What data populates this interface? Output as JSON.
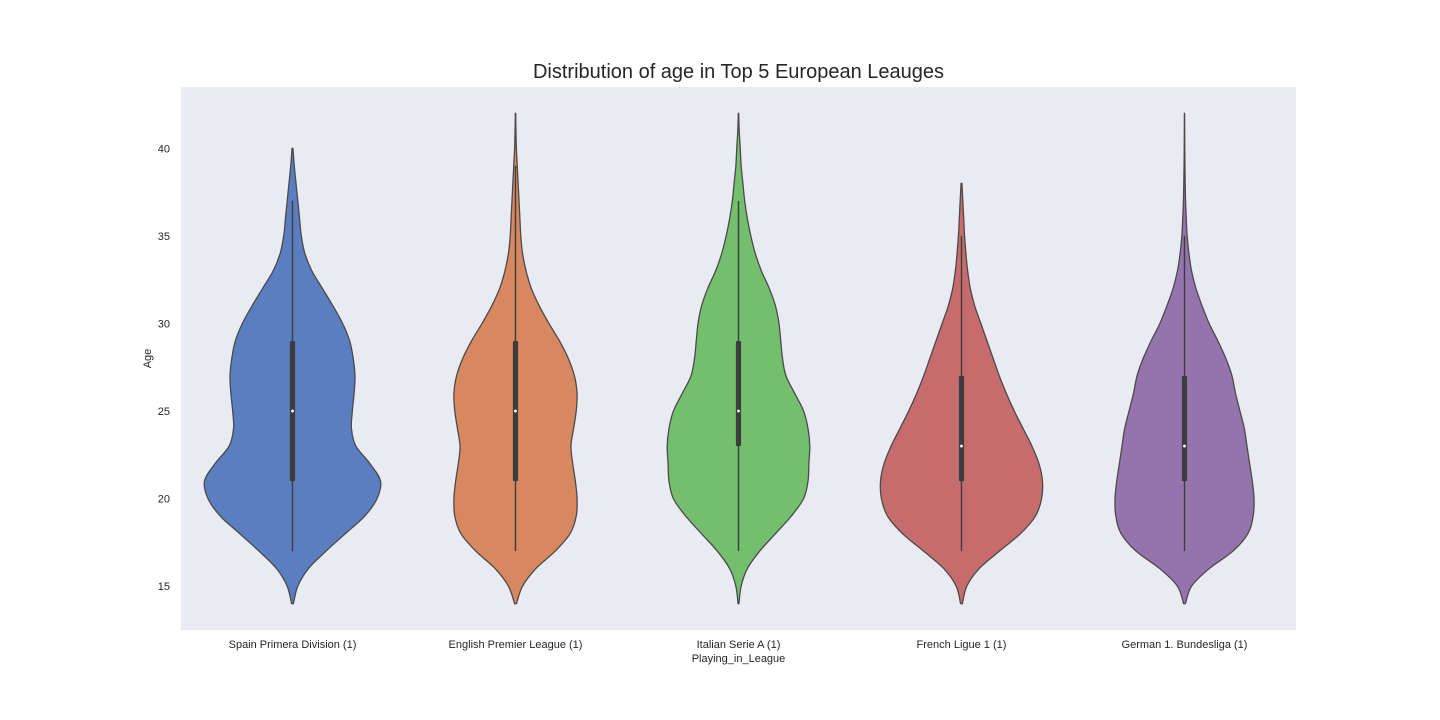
{
  "chart_data": {
    "type": "violin",
    "title": "Distribution of age in Top 5 European Leauges",
    "xlabel": "Playing_in_League",
    "ylabel": "Age",
    "ylim": [
      12.5,
      43.5
    ],
    "yticks": [
      15,
      20,
      25,
      30,
      35,
      40
    ],
    "grid": false,
    "background": "#eaeaf2",
    "categories": [
      "Spain Primera Division (1)",
      "English Premier League (1)",
      "Italian Serie A (1)",
      "French Ligue 1 (1)",
      "German 1. Bundesliga (1)"
    ],
    "series": [
      {
        "color": "#5a7ec0",
        "min": 14,
        "max": 40,
        "q1": 21,
        "median": 25,
        "q3": 29,
        "whisker_low": 17,
        "whisker_high": 37,
        "density": [
          [
            14,
            0.01
          ],
          [
            15,
            0.06
          ],
          [
            16,
            0.18
          ],
          [
            17,
            0.38
          ],
          [
            18,
            0.6
          ],
          [
            19,
            0.82
          ],
          [
            20,
            0.96
          ],
          [
            21,
            1.0
          ],
          [
            22,
            0.88
          ],
          [
            23,
            0.72
          ],
          [
            24,
            0.67
          ],
          [
            25,
            0.68
          ],
          [
            26,
            0.7
          ],
          [
            27,
            0.71
          ],
          [
            28,
            0.69
          ],
          [
            29,
            0.65
          ],
          [
            30,
            0.57
          ],
          [
            31,
            0.46
          ],
          [
            32,
            0.34
          ],
          [
            33,
            0.22
          ],
          [
            34,
            0.14
          ],
          [
            35,
            0.1
          ],
          [
            36,
            0.08
          ],
          [
            37,
            0.06
          ],
          [
            38,
            0.04
          ],
          [
            39,
            0.02
          ],
          [
            40,
            0.005
          ]
        ]
      },
      {
        "color": "#d8885e",
        "min": 14,
        "max": 42,
        "q1": 21,
        "median": 25,
        "q3": 29,
        "whisker_low": 17,
        "whisker_high": 39,
        "density": [
          [
            14,
            0.01
          ],
          [
            15,
            0.08
          ],
          [
            16,
            0.23
          ],
          [
            17,
            0.45
          ],
          [
            18,
            0.62
          ],
          [
            19,
            0.69
          ],
          [
            20,
            0.7
          ],
          [
            21,
            0.68
          ],
          [
            22,
            0.65
          ],
          [
            23,
            0.63
          ],
          [
            24,
            0.66
          ],
          [
            25,
            0.69
          ],
          [
            26,
            0.7
          ],
          [
            27,
            0.67
          ],
          [
            28,
            0.6
          ],
          [
            29,
            0.5
          ],
          [
            30,
            0.38
          ],
          [
            31,
            0.27
          ],
          [
            32,
            0.18
          ],
          [
            33,
            0.12
          ],
          [
            34,
            0.08
          ],
          [
            35,
            0.06
          ],
          [
            36,
            0.05
          ],
          [
            37,
            0.04
          ],
          [
            38,
            0.03
          ],
          [
            39,
            0.02
          ],
          [
            40,
            0.01
          ],
          [
            41,
            0.005
          ],
          [
            42,
            0.002
          ]
        ]
      },
      {
        "color": "#74bf6e",
        "min": 14,
        "max": 42,
        "q1": 23,
        "median": 25,
        "q3": 29,
        "whisker_low": 17,
        "whisker_high": 37,
        "density": [
          [
            14,
            0.005
          ],
          [
            15,
            0.03
          ],
          [
            16,
            0.1
          ],
          [
            17,
            0.24
          ],
          [
            18,
            0.42
          ],
          [
            19,
            0.6
          ],
          [
            20,
            0.74
          ],
          [
            21,
            0.79
          ],
          [
            22,
            0.8
          ],
          [
            23,
            0.81
          ],
          [
            24,
            0.79
          ],
          [
            25,
            0.74
          ],
          [
            26,
            0.64
          ],
          [
            27,
            0.54
          ],
          [
            28,
            0.5
          ],
          [
            29,
            0.48
          ],
          [
            30,
            0.46
          ],
          [
            31,
            0.42
          ],
          [
            32,
            0.35
          ],
          [
            33,
            0.26
          ],
          [
            34,
            0.19
          ],
          [
            35,
            0.14
          ],
          [
            36,
            0.1
          ],
          [
            37,
            0.07
          ],
          [
            38,
            0.05
          ],
          [
            39,
            0.03
          ],
          [
            40,
            0.02
          ],
          [
            41,
            0.008
          ],
          [
            42,
            0.002
          ]
        ]
      },
      {
        "color": "#c66c6c",
        "min": 14,
        "max": 38,
        "q1": 21,
        "median": 23,
        "q3": 27,
        "whisker_low": 17,
        "whisker_high": 35,
        "density": [
          [
            14,
            0.01
          ],
          [
            15,
            0.06
          ],
          [
            16,
            0.2
          ],
          [
            17,
            0.43
          ],
          [
            18,
            0.67
          ],
          [
            19,
            0.84
          ],
          [
            20,
            0.91
          ],
          [
            21,
            0.92
          ],
          [
            22,
            0.88
          ],
          [
            23,
            0.8
          ],
          [
            24,
            0.7
          ],
          [
            25,
            0.6
          ],
          [
            26,
            0.51
          ],
          [
            27,
            0.43
          ],
          [
            28,
            0.36
          ],
          [
            29,
            0.29
          ],
          [
            30,
            0.22
          ],
          [
            31,
            0.15
          ],
          [
            32,
            0.1
          ],
          [
            33,
            0.07
          ],
          [
            34,
            0.05
          ],
          [
            35,
            0.035
          ],
          [
            36,
            0.025
          ],
          [
            37,
            0.015
          ],
          [
            38,
            0.005
          ]
        ]
      },
      {
        "color": "#9574ad",
        "min": 14,
        "max": 42,
        "q1": 21,
        "median": 23,
        "q3": 27,
        "whisker_low": 17,
        "whisker_high": 35,
        "density": [
          [
            14,
            0.01
          ],
          [
            15,
            0.08
          ],
          [
            16,
            0.28
          ],
          [
            17,
            0.55
          ],
          [
            18,
            0.72
          ],
          [
            19,
            0.78
          ],
          [
            20,
            0.79
          ],
          [
            21,
            0.77
          ],
          [
            22,
            0.74
          ],
          [
            23,
            0.71
          ],
          [
            24,
            0.68
          ],
          [
            25,
            0.63
          ],
          [
            26,
            0.58
          ],
          [
            27,
            0.54
          ],
          [
            28,
            0.47
          ],
          [
            29,
            0.38
          ],
          [
            30,
            0.28
          ],
          [
            31,
            0.2
          ],
          [
            32,
            0.13
          ],
          [
            33,
            0.08
          ],
          [
            34,
            0.05
          ],
          [
            35,
            0.03
          ],
          [
            36,
            0.02
          ],
          [
            37,
            0.012
          ],
          [
            38,
            0.008
          ],
          [
            39,
            0.005
          ],
          [
            40,
            0.003
          ],
          [
            41,
            0.002
          ],
          [
            42,
            0.001
          ]
        ]
      }
    ]
  }
}
